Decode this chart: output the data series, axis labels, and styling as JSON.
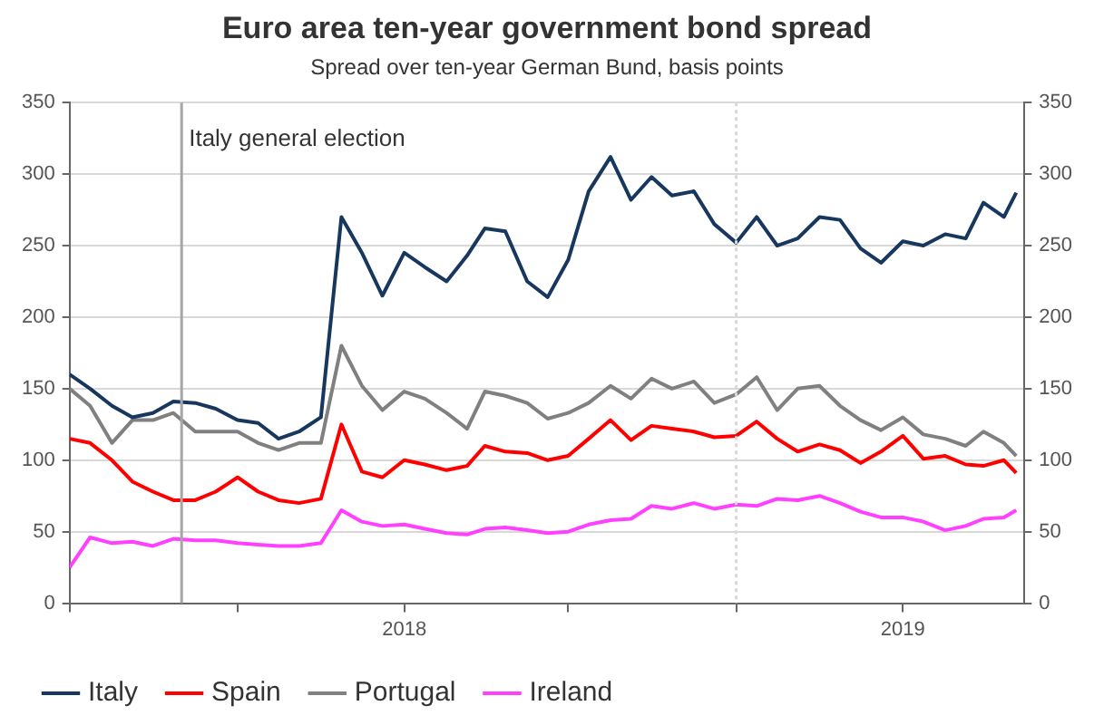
{
  "chart_data": {
    "type": "line",
    "title": "Euro area ten-year government bond spread",
    "subtitle": "Spread over ten-year German Bund, basis points",
    "x": [
      "2017-05-01",
      "2017-05-16",
      "2017-06-01",
      "2017-06-16",
      "2017-07-01",
      "2017-07-16",
      "2017-08-01",
      "2017-08-16",
      "2017-09-01",
      "2017-09-16",
      "2017-10-01",
      "2017-10-16",
      "2017-11-01",
      "2017-11-16",
      "2017-12-01",
      "2017-12-16",
      "2018-01-01",
      "2018-01-16",
      "2018-02-01",
      "2018-02-16",
      "2018-03-01",
      "2018-03-16",
      "2018-04-01",
      "2018-04-16",
      "2018-05-01",
      "2018-05-16",
      "2018-06-01",
      "2018-06-16",
      "2018-07-01",
      "2018-07-16",
      "2018-08-01",
      "2018-08-16",
      "2018-09-01",
      "2018-09-16",
      "2018-10-01",
      "2018-10-16",
      "2018-11-01",
      "2018-11-16",
      "2018-12-01",
      "2018-12-16",
      "2019-01-01",
      "2019-01-16",
      "2019-02-01",
      "2019-02-16",
      "2019-03-01",
      "2019-03-16",
      "2019-03-25"
    ],
    "series": [
      {
        "name": "Italy",
        "color": "#17375e",
        "values": [
          160,
          150,
          138,
          130,
          133,
          141,
          140,
          136,
          128,
          126,
          115,
          120,
          130,
          270,
          245,
          215,
          245,
          235,
          225,
          243,
          262,
          260,
          225,
          214,
          240,
          288,
          312,
          282,
          298,
          285,
          288,
          265,
          252,
          270,
          250,
          255,
          270,
          268,
          248,
          238,
          253,
          250,
          258,
          255,
          280,
          270,
          287
        ]
      },
      {
        "name": "Spain",
        "color": "#ff0000",
        "values": [
          115,
          112,
          100,
          85,
          78,
          72,
          72,
          78,
          88,
          78,
          72,
          70,
          73,
          125,
          92,
          88,
          100,
          97,
          93,
          96,
          110,
          106,
          105,
          100,
          103,
          115,
          128,
          114,
          124,
          122,
          120,
          116,
          117,
          127,
          115,
          106,
          111,
          107,
          98,
          106,
          117,
          101,
          103,
          97,
          96,
          100,
          91
        ]
      },
      {
        "name": "Portugal",
        "color": "#808080",
        "values": [
          150,
          138,
          112,
          128,
          128,
          133,
          120,
          120,
          120,
          112,
          107,
          112,
          112,
          180,
          152,
          135,
          148,
          143,
          133,
          122,
          148,
          145,
          140,
          129,
          133,
          140,
          152,
          143,
          157,
          150,
          155,
          140,
          146,
          158,
          135,
          150,
          152,
          138,
          128,
          121,
          130,
          118,
          115,
          110,
          120,
          112,
          103
        ]
      },
      {
        "name": "Ireland",
        "color": "#ff40ff",
        "values": [
          25,
          46,
          42,
          43,
          40,
          45,
          44,
          44,
          42,
          41,
          40,
          40,
          42,
          65,
          57,
          54,
          55,
          52,
          49,
          48,
          52,
          53,
          51,
          49,
          50,
          55,
          58,
          59,
          68,
          66,
          70,
          66,
          69,
          68,
          73,
          72,
          75,
          70,
          64,
          60,
          60,
          57,
          51,
          54,
          59,
          60,
          65
        ]
      }
    ],
    "xlim": [
      "2017-05-01",
      "2019-03-31"
    ],
    "xticks": [
      {
        "value": "2017-05-01",
        "label": null
      },
      {
        "value": "2017-09-01",
        "label": null
      },
      {
        "value": "2018-01-01",
        "label": "2018"
      },
      {
        "value": "2018-05-01",
        "label": null
      },
      {
        "value": "2018-09-01",
        "label": null
      },
      {
        "value": "2019-01-01",
        "label": "2019"
      }
    ],
    "ylim": [
      0,
      350
    ],
    "yticks": [
      0,
      50,
      100,
      150,
      200,
      250,
      300,
      350
    ],
    "y2lim": [
      0,
      350
    ],
    "y2ticks": [
      0,
      50,
      100,
      150,
      200,
      250,
      300,
      350
    ],
    "grid": "y",
    "legend": "bottom",
    "ref_lines": [
      {
        "axis": "x",
        "value": "2017-07-22",
        "label": "Italy general election",
        "color": "#a6a6a6",
        "line_style": "solid"
      },
      {
        "axis": "x",
        "value": "2018-09-01",
        "color": "#d9d9d9",
        "line_style": "dotted"
      }
    ]
  }
}
